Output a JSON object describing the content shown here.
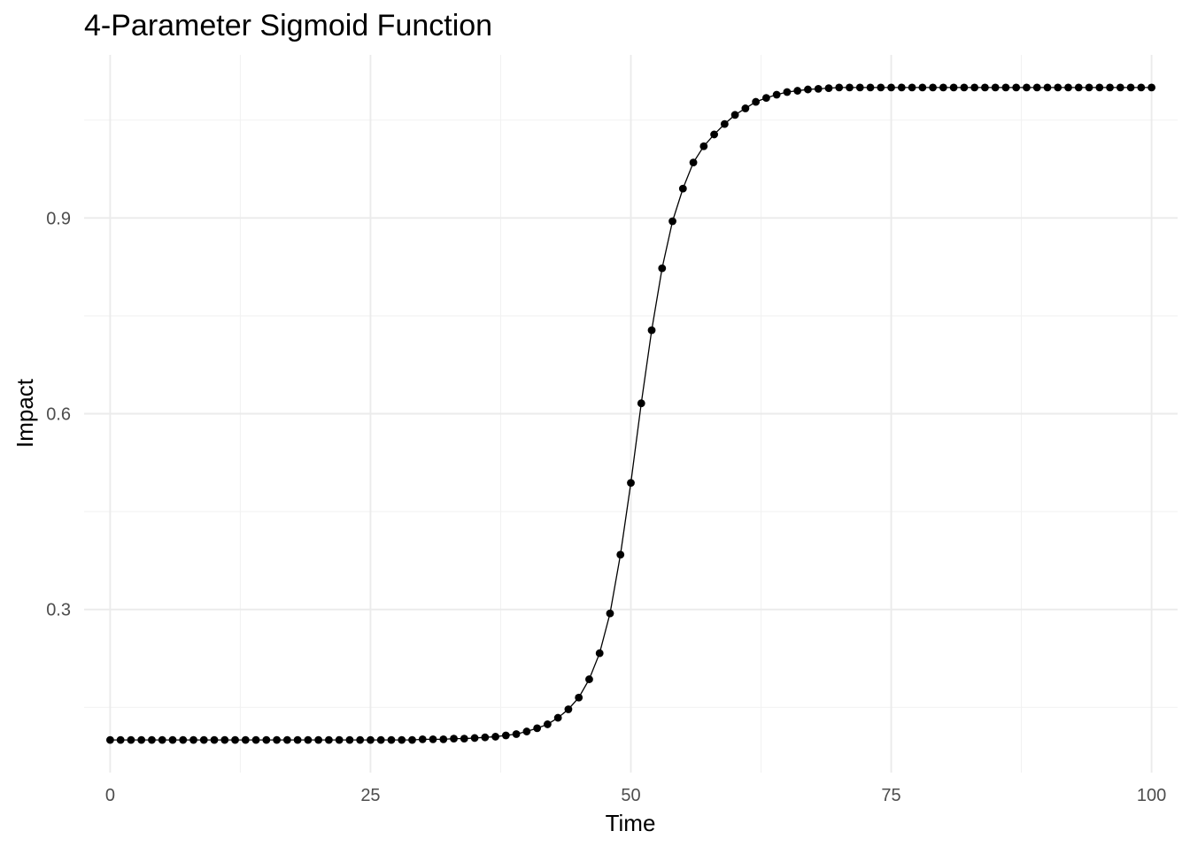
{
  "chart_data": {
    "type": "line",
    "title": "4-Parameter Sigmoid Function",
    "xlabel": "Time",
    "ylabel": "Impact",
    "xlim": [
      -2.5,
      102.5
    ],
    "ylim": [
      0.05,
      1.15
    ],
    "xticks": [
      0,
      25,
      50,
      75,
      100
    ],
    "xtick_labels": [
      "0",
      "25",
      "50",
      "75",
      "100"
    ],
    "yticks": [
      0.3,
      0.6,
      0.9
    ],
    "ytick_labels": [
      "0.3",
      "0.6",
      "0.9"
    ],
    "grid": true,
    "legend": "none",
    "markers": true,
    "series": [
      {
        "color": "#000000",
        "x": [
          0,
          1,
          2,
          3,
          4,
          5,
          6,
          7,
          8,
          9,
          10,
          11,
          12,
          13,
          14,
          15,
          16,
          17,
          18,
          19,
          20,
          21,
          22,
          23,
          24,
          25,
          26,
          27,
          28,
          29,
          30,
          31,
          32,
          33,
          34,
          35,
          36,
          37,
          38,
          39,
          40,
          41,
          42,
          43,
          44,
          45,
          46,
          47,
          48,
          49,
          50,
          51,
          52,
          53,
          54,
          55,
          56,
          57,
          58,
          59,
          60,
          61,
          62,
          63,
          64,
          65,
          66,
          67,
          68,
          69,
          70,
          71,
          72,
          73,
          74,
          75,
          76,
          77,
          78,
          79,
          80,
          81,
          82,
          83,
          84,
          85,
          86,
          87,
          88,
          89,
          90,
          91,
          92,
          93,
          94,
          95,
          96,
          97,
          98,
          99,
          100
        ],
        "y": [
          0.1,
          0.1,
          0.1,
          0.1,
          0.1,
          0.1,
          0.1,
          0.1,
          0.1,
          0.1,
          0.1,
          0.1,
          0.1,
          0.1,
          0.1,
          0.1,
          0.1,
          0.1,
          0.1,
          0.1,
          0.1,
          0.1,
          0.1,
          0.1,
          0.1,
          0.1,
          0.1,
          0.1,
          0.1,
          0.1,
          0.101,
          0.101,
          0.101,
          0.102,
          0.102,
          0.103,
          0.104,
          0.105,
          0.107,
          0.109,
          0.113,
          0.118,
          0.124,
          0.134,
          0.147,
          0.165,
          0.193,
          0.233,
          0.294,
          0.384,
          0.494,
          0.616,
          0.728,
          0.823,
          0.895,
          0.945,
          0.985,
          1.01,
          1.028,
          1.044,
          1.058,
          1.068,
          1.078,
          1.084,
          1.089,
          1.093,
          1.095,
          1.097,
          1.098,
          1.099,
          1.1,
          1.1,
          1.1,
          1.1,
          1.1,
          1.1,
          1.1,
          1.1,
          1.1,
          1.1,
          1.1,
          1.1,
          1.1,
          1.1,
          1.1,
          1.1,
          1.1,
          1.1,
          1.1,
          1.1,
          1.1,
          1.1,
          1.1,
          1.1,
          1.1,
          1.1,
          1.1,
          1.1,
          1.1,
          1.1,
          1.1
        ]
      }
    ]
  }
}
